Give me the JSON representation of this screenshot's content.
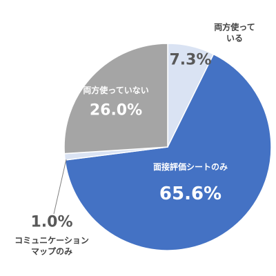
{
  "chart_data": {
    "type": "pie",
    "categories": [
      "両方使っている",
      "面接評価シートのみ",
      "コミュニケーション\nマップのみ",
      "両方使っていない"
    ],
    "values": [
      7.3,
      65.6,
      1.0,
      26.0
    ],
    "value_labels": [
      "7.3%",
      "65.6%",
      "1.0%",
      "26.0%"
    ],
    "colors": [
      "#dae3f3",
      "#4472c4",
      "#dae3f3",
      "#a5a5a5"
    ]
  }
}
